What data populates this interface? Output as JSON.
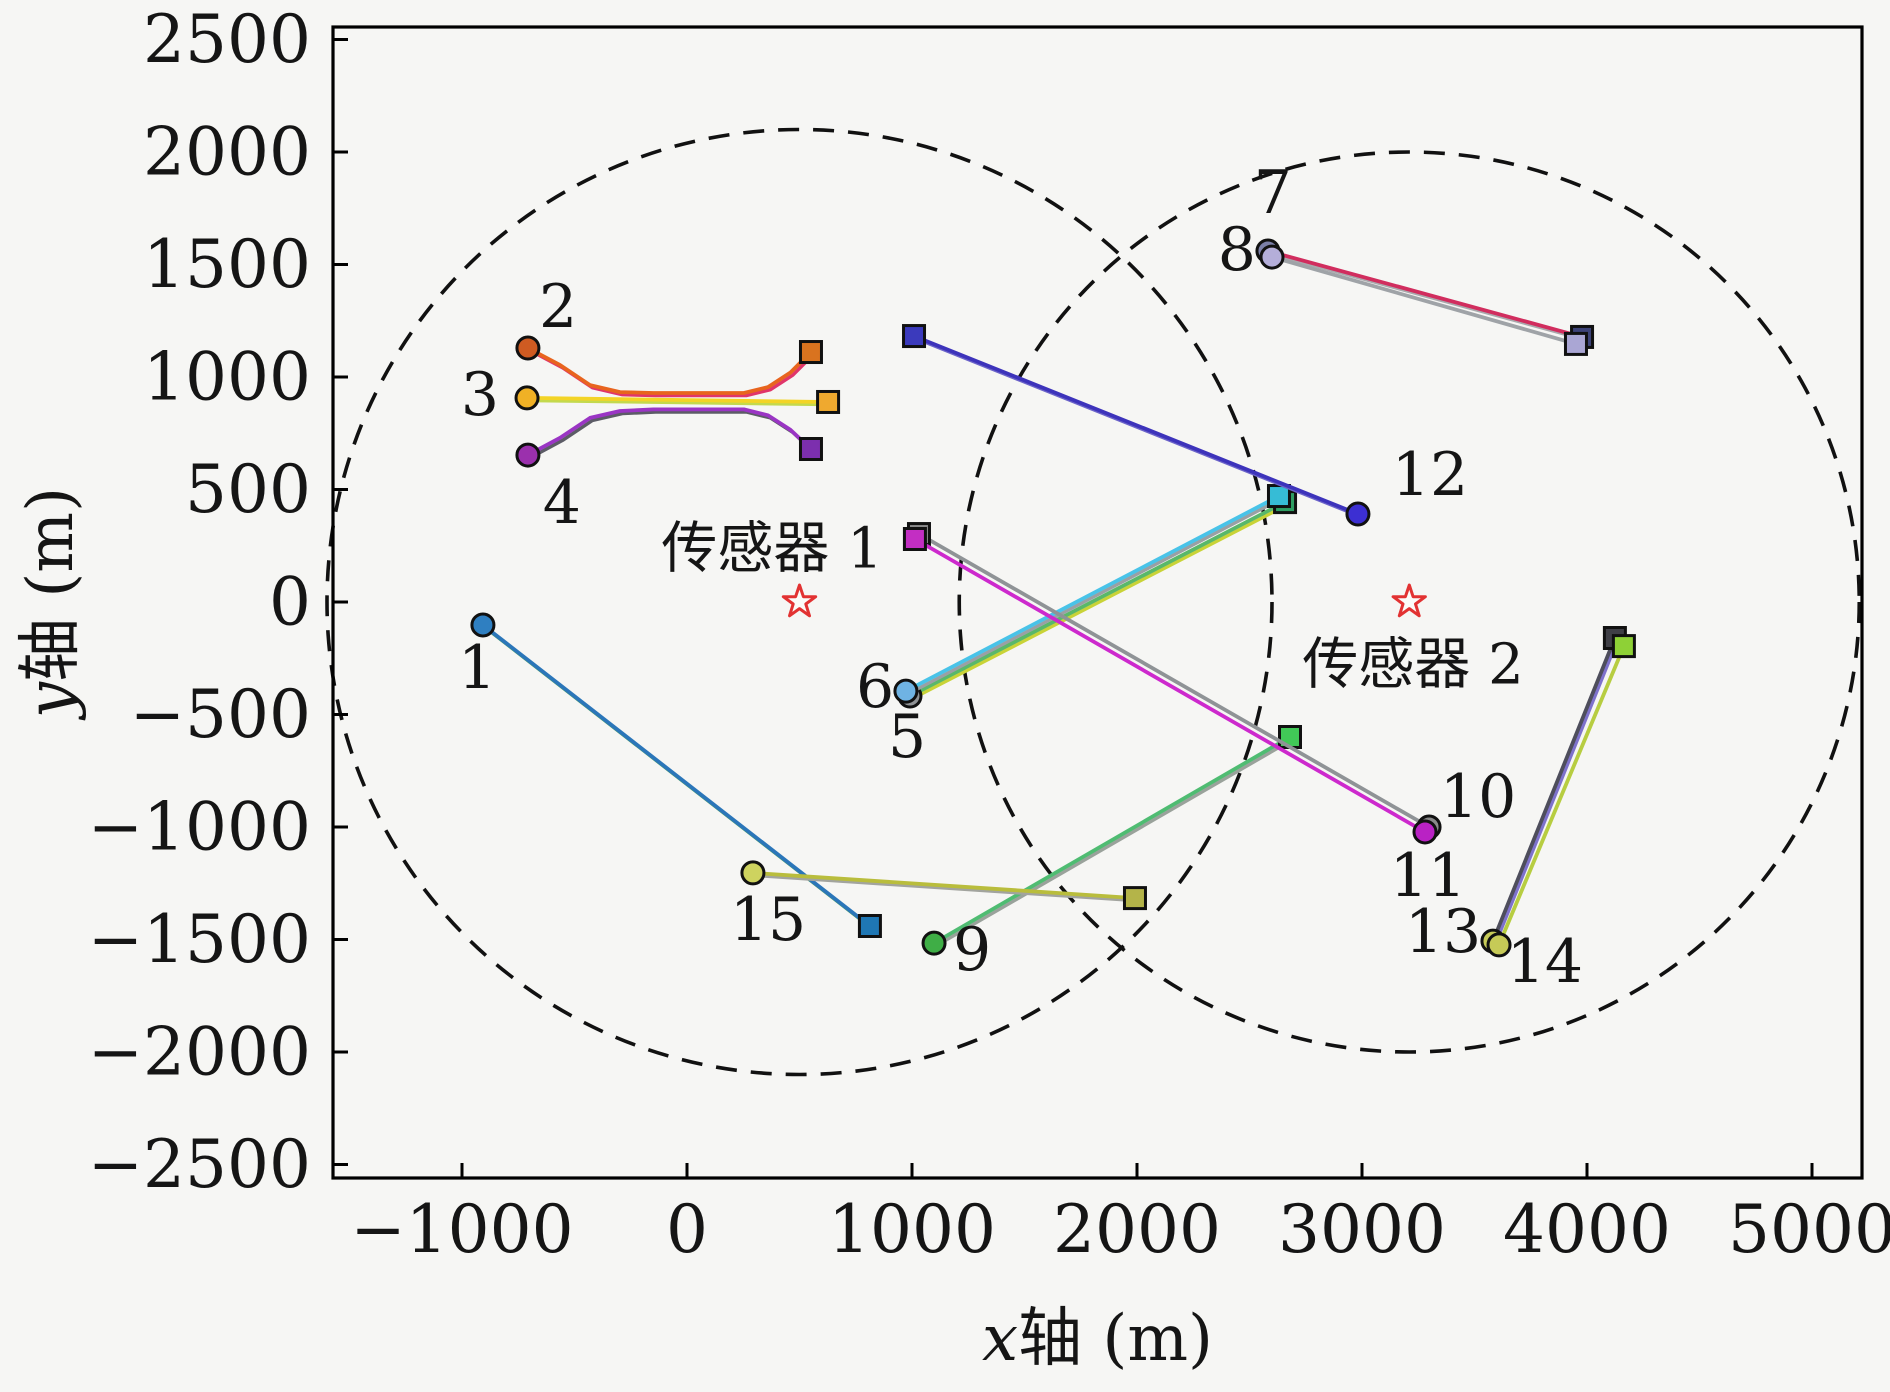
{
  "figure": {
    "background": "#f6f6f4"
  },
  "chart_data": {
    "type": "scatter",
    "title": "",
    "xlabel": "x轴 (m)",
    "ylabel": "y轴 (m)",
    "xlabel_var": "x",
    "xlabel_rest": "轴 (m)",
    "ylabel_var": "y",
    "ylabel_rest": "轴 (m)",
    "xlim": [
      -1573,
      5222
    ],
    "ylim": [
      -2560,
      2556
    ],
    "xticks": [
      -1000,
      0,
      1000,
      2000,
      3000,
      4000,
      5000
    ],
    "yticks": [
      2500,
      2000,
      1500,
      1000,
      500,
      0,
      -500,
      -1000,
      -1500,
      -2000,
      -2500
    ],
    "grid": false,
    "legend": "none",
    "sensor_star_color": "#e23232",
    "sensors": [
      {
        "label": "传感器 1",
        "x": 500,
        "y": 0,
        "radius": 2100,
        "label_x": 378,
        "label_y": 236
      },
      {
        "label": "传感器 2",
        "x": 3210,
        "y": 0,
        "radius": 2000,
        "label_x": 3227,
        "label_y": -280
      }
    ],
    "targets": [
      {
        "id": "1",
        "line": "#2b76b9",
        "companion": "#4d9e63",
        "circle": "#2f7fc1",
        "square": "#1f77b4",
        "points": [
          [
            -907,
            -102
          ],
          [
            813,
            -1440
          ]
        ],
        "label_x": -933,
        "label_y": -293
      },
      {
        "id": "2",
        "line": "#e8641e",
        "companion": "#e0356a",
        "circle": "#cf5b22",
        "square": "#d9731f",
        "points": [
          [
            -707,
            1129
          ],
          [
            -564,
            1053
          ],
          [
            -431,
            964
          ],
          [
            -298,
            933
          ],
          [
            -150,
            929
          ],
          [
            253,
            929
          ],
          [
            360,
            955
          ],
          [
            460,
            1020
          ],
          [
            551,
            1111
          ]
        ],
        "label_x": -573,
        "label_y": 1311
      },
      {
        "id": "3",
        "line": "#f3d426",
        "companion": "#c3d94e",
        "circle": "#f0b125",
        "square": "#efa92f",
        "points": [
          [
            -711,
            907
          ],
          [
            627,
            889
          ]
        ],
        "label_x": -920,
        "label_y": 920
      },
      {
        "id": "4",
        "line": "#9a35c4",
        "companion": "#5c5c66",
        "circle": "#9b30ad",
        "square": "#7c2fae",
        "points": [
          [
            -707,
            653
          ],
          [
            -564,
            730
          ],
          [
            -431,
            818
          ],
          [
            -298,
            849
          ],
          [
            -150,
            856
          ],
          [
            253,
            856
          ],
          [
            360,
            830
          ],
          [
            460,
            765
          ],
          [
            551,
            680
          ]
        ],
        "label_x": -556,
        "label_y": 440
      },
      {
        "id": "5",
        "line": "#59b86a",
        "companion": "#c9d337",
        "circle": "#8f9295",
        "square": "#2e9e62",
        "points": [
          [
            991,
            -418
          ],
          [
            2658,
            444
          ]
        ],
        "label_x": 978,
        "label_y": -600
      },
      {
        "id": "6",
        "line": "#49c3e8",
        "companion": "#9aa0a4",
        "circle": "#6fb3e3",
        "square": "#36bcd6",
        "points": [
          [
            973,
            -396
          ],
          [
            2631,
            471
          ]
        ],
        "label_x": 836,
        "label_y": -378
      },
      {
        "id": "7",
        "line": "#d12d5e",
        "companion": "#a9a9ad",
        "circle": "#7b7fa8",
        "square": "#3d4378",
        "points": [
          [
            2582,
            1560
          ],
          [
            3978,
            1178
          ]
        ],
        "label_x": 2604,
        "label_y": 1818
      },
      {
        "id": "8",
        "line": "#9fa3a7",
        "companion": null,
        "circle": "#b4aed9",
        "square": "#aaa6d4",
        "points": [
          [
            2600,
            1533
          ],
          [
            3951,
            1147
          ]
        ],
        "label_x": 2444,
        "label_y": 1564
      },
      {
        "id": "9",
        "line": "#4fbc72",
        "companion": "#9aa29b",
        "circle": "#3fae46",
        "square": "#41c957",
        "points": [
          [
            1098,
            -1516
          ],
          [
            2680,
            -600
          ]
        ],
        "label_x": 1267,
        "label_y": -1547
      },
      {
        "id": "10",
        "line": "#8f9396",
        "companion": null,
        "circle": "#8a8a8a",
        "square": "#8a8a8a",
        "points": [
          [
            3298,
            -1000
          ],
          [
            1031,
            302
          ]
        ],
        "label_x": 3516,
        "label_y": -867
      },
      {
        "id": "11",
        "line": "#cd29cd",
        "companion": null,
        "circle": "#b922c4",
        "square": "#c32ec3",
        "points": [
          [
            3280,
            -1022
          ],
          [
            1013,
            280
          ]
        ],
        "label_x": 3293,
        "label_y": -1218
      },
      {
        "id": "12",
        "line": "#3d33bb",
        "companion": "#6b63c9",
        "circle": "#3c2fd2",
        "square": "#3b3abc",
        "points": [
          [
            2982,
            391
          ],
          [
            1009,
            1182
          ]
        ],
        "label_x": 3302,
        "label_y": 564
      },
      {
        "id": "13",
        "line": "#4e4e5c",
        "companion": "#7e72cc",
        "circle": "#c6ca57",
        "square": "#3f3f46",
        "points": [
          [
            3582,
            -1507
          ],
          [
            4124,
            -160
          ]
        ],
        "label_x": 3360,
        "label_y": -1467
      },
      {
        "id": "14",
        "line": "#b7cd41",
        "companion": null,
        "circle": "#c6ca57",
        "square": "#8ed136",
        "points": [
          [
            3609,
            -1524
          ],
          [
            4164,
            -196
          ]
        ],
        "label_x": 3813,
        "label_y": -1600
      },
      {
        "id": "15",
        "line": "#b9bd3c",
        "companion": "#a2a49e",
        "circle": "#ced35f",
        "square": "#b4b449",
        "points": [
          [
            293,
            -1204
          ],
          [
            1991,
            -1316
          ]
        ],
        "label_x": 360,
        "label_y": -1413
      }
    ]
  }
}
